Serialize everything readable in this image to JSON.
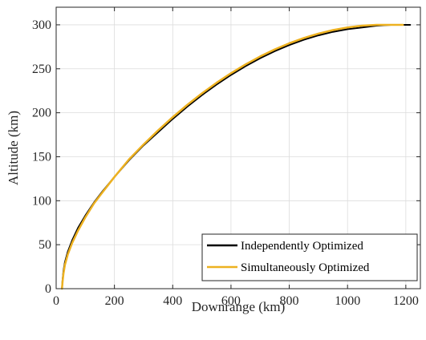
{
  "chart_data": {
    "type": "line",
    "title": "",
    "xlabel": "Downrange (km)",
    "ylabel": "Altitude (km)",
    "xlim": [
      0,
      1250
    ],
    "ylim": [
      0,
      320
    ],
    "xticks": [
      0,
      200,
      400,
      600,
      800,
      1000,
      1200
    ],
    "yticks": [
      0,
      50,
      100,
      150,
      200,
      250,
      300
    ],
    "grid": true,
    "legend_position": "bottom-right",
    "series": [
      {
        "name": "Independently Optimized",
        "color": "#000000",
        "x": [
          20,
          22,
          25,
          30,
          40,
          55,
          75,
          100,
          130,
          160,
          200,
          250,
          300,
          350,
          400,
          450,
          500,
          550,
          600,
          650,
          700,
          750,
          800,
          850,
          900,
          950,
          1000,
          1050,
          1100,
          1150,
          1190,
          1215
        ],
        "y": [
          0,
          10,
          20,
          30,
          42,
          55,
          69,
          83,
          98,
          111,
          127,
          146,
          163,
          178,
          193,
          207,
          220,
          232,
          243,
          253,
          262,
          270,
          277,
          283,
          288,
          292,
          295,
          297,
          299,
          300,
          300,
          300
        ]
      },
      {
        "name": "Simultaneously Optimized",
        "color": "#EDB120",
        "x": [
          20,
          22,
          25,
          30,
          40,
          55,
          75,
          100,
          130,
          160,
          200,
          250,
          300,
          350,
          400,
          450,
          500,
          550,
          600,
          650,
          700,
          750,
          800,
          850,
          900,
          950,
          1000,
          1050,
          1100,
          1150,
          1190
        ],
        "y": [
          0,
          8,
          17,
          27,
          39,
          52,
          66,
          81,
          97,
          110,
          127,
          147,
          164,
          180,
          195,
          209,
          222,
          234,
          245,
          255,
          264,
          272,
          279,
          285,
          290,
          294,
          297,
          299,
          300,
          300,
          300
        ]
      }
    ]
  }
}
